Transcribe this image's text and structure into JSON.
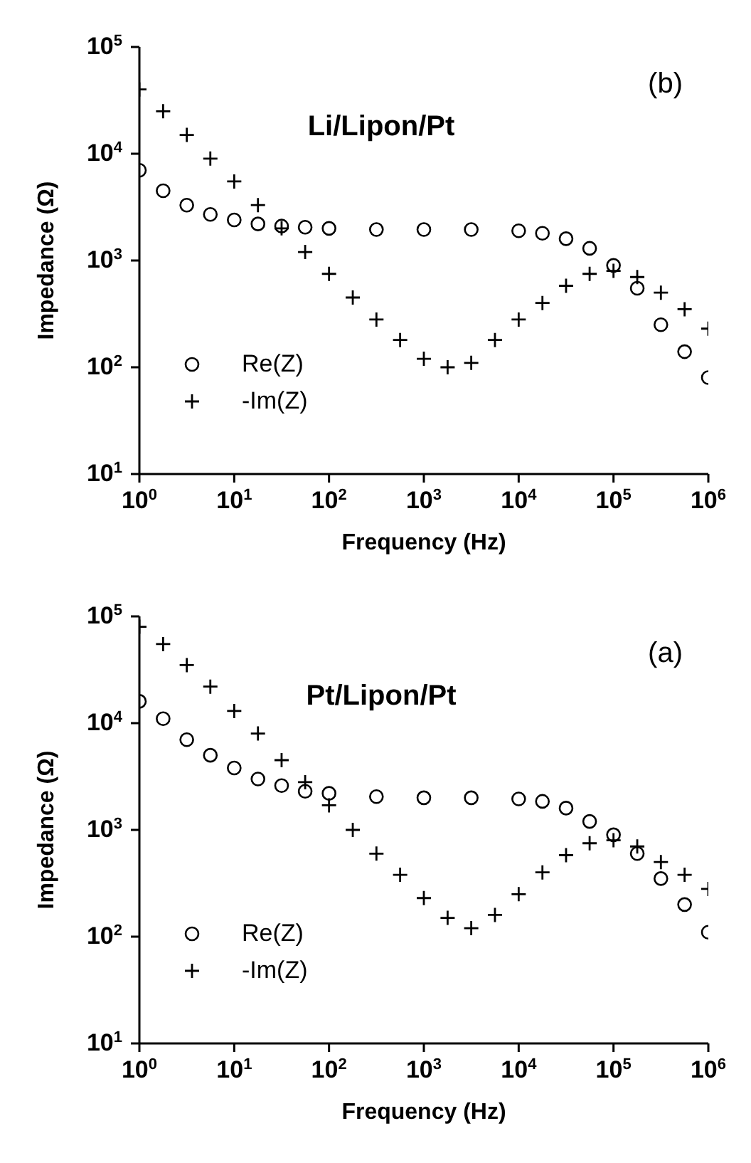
{
  "chart_data": [
    {
      "type": "scatter",
      "xlabel": "Frequency (Hz)",
      "ylabel": "Impedance (Ω)",
      "annotations": [
        "(b)",
        "Li/Lipon/Pt"
      ],
      "log": "xy",
      "legend": "bottom left",
      "grid": false,
      "xlim": [
        1,
        1000000
      ],
      "ylim": [
        10,
        100000
      ],
      "xticks": [
        {
          "value": 1,
          "label": "10$^{0}$"
        },
        {
          "value": 10,
          "label": "10$^{1}$"
        },
        {
          "value": 100,
          "label": "10$^{2}$"
        },
        {
          "value": 1000,
          "label": "10$^{3}$"
        },
        {
          "value": 10000,
          "label": "10$^{4}$"
        },
        {
          "value": 100000,
          "label": "10$^{5}$"
        },
        {
          "value": 1000000,
          "label": "10$^{6}$"
        }
      ],
      "yticks": [
        {
          "value": 10,
          "label": "10$^{1}$"
        },
        {
          "value": 100,
          "label": "10$^{2}$"
        },
        {
          "value": 1000,
          "label": "10$^{3}$"
        },
        {
          "value": 10000,
          "label": "10$^{4}$"
        },
        {
          "value": 100000,
          "label": "10$^{5}$"
        }
      ],
      "series": [
        {
          "name": "Re(Z)",
          "color": "#000000",
          "marker": "circle",
          "x": [
            1,
            1.78,
            3.16,
            5.6,
            10,
            17.8,
            31.6,
            56,
            100,
            316,
            1000,
            3160,
            10000,
            17800,
            31600,
            56000,
            100000,
            178000,
            316000,
            562000,
            1000000
          ],
          "values": [
            7000,
            4500,
            3300,
            2700,
            2400,
            2200,
            2100,
            2050,
            2000,
            1950,
            1950,
            1950,
            1900,
            1800,
            1600,
            1300,
            900,
            550,
            250,
            140,
            80
          ]
        },
        {
          "name": "-Im(Z)",
          "color": "#000000",
          "marker": "cross",
          "x": [
            1,
            1.78,
            3.16,
            5.6,
            10,
            17.8,
            31.6,
            56,
            100,
            178,
            316,
            562,
            1000,
            1780,
            3160,
            5620,
            10000,
            17800,
            31600,
            56000,
            100000,
            178000,
            316000,
            562000,
            1000000
          ],
          "values": [
            40000,
            25000,
            15000,
            9000,
            5500,
            3300,
            2000,
            1200,
            750,
            450,
            280,
            180,
            120,
            100,
            110,
            180,
            280,
            400,
            580,
            750,
            800,
            700,
            500,
            350,
            230
          ]
        }
      ]
    },
    {
      "type": "scatter",
      "xlabel": "Frequency (Hz)",
      "ylabel": "Impedance (Ω)",
      "annotations": [
        "(a)",
        "Pt/Lipon/Pt"
      ],
      "log": "xy",
      "legend": "bottom left",
      "grid": false,
      "xlim": [
        1,
        1000000
      ],
      "ylim": [
        10,
        100000
      ],
      "xticks": [
        {
          "value": 1,
          "label": "10$^{0}$"
        },
        {
          "value": 10,
          "label": "10$^{1}$"
        },
        {
          "value": 100,
          "label": "10$^{2}$"
        },
        {
          "value": 1000,
          "label": "10$^{3}$"
        },
        {
          "value": 10000,
          "label": "10$^{4}$"
        },
        {
          "value": 100000,
          "label": "10$^{5}$"
        },
        {
          "value": 1000000,
          "label": "10$^{6}$"
        }
      ],
      "yticks": [
        {
          "value": 10,
          "label": "10$^{1}$"
        },
        {
          "value": 100,
          "label": "10$^{2}$"
        },
        {
          "value": 1000,
          "label": "10$^{3}$"
        },
        {
          "value": 10000,
          "label": "10$^{4}$"
        },
        {
          "value": 100000,
          "label": "10$^{5}$"
        }
      ],
      "series": [
        {
          "name": "Re(Z)",
          "color": "#000000",
          "marker": "circle",
          "x": [
            1,
            1.78,
            3.16,
            5.6,
            10,
            17.8,
            31.6,
            56,
            100,
            316,
            1000,
            3160,
            10000,
            17800,
            31600,
            56000,
            100000,
            178000,
            316000,
            562000,
            1000000
          ],
          "values": [
            16000,
            11000,
            7000,
            5000,
            3800,
            3000,
            2600,
            2300,
            2200,
            2050,
            2000,
            2000,
            1950,
            1850,
            1600,
            1200,
            900,
            600,
            350,
            200,
            110
          ]
        },
        {
          "name": "-Im(Z)",
          "color": "#000000",
          "marker": "cross",
          "x": [
            1,
            1.78,
            3.16,
            5.6,
            10,
            17.8,
            31.6,
            56,
            100,
            178,
            316,
            562,
            1000,
            1780,
            3160,
            5620,
            10000,
            17800,
            31600,
            56000,
            100000,
            178000,
            316000,
            562000,
            1000000
          ],
          "values": [
            80000,
            55000,
            35000,
            22000,
            13000,
            8000,
            4500,
            2800,
            1700,
            1000,
            600,
            380,
            230,
            150,
            120,
            160,
            250,
            400,
            580,
            750,
            800,
            700,
            500,
            380,
            280
          ]
        }
      ]
    }
  ]
}
